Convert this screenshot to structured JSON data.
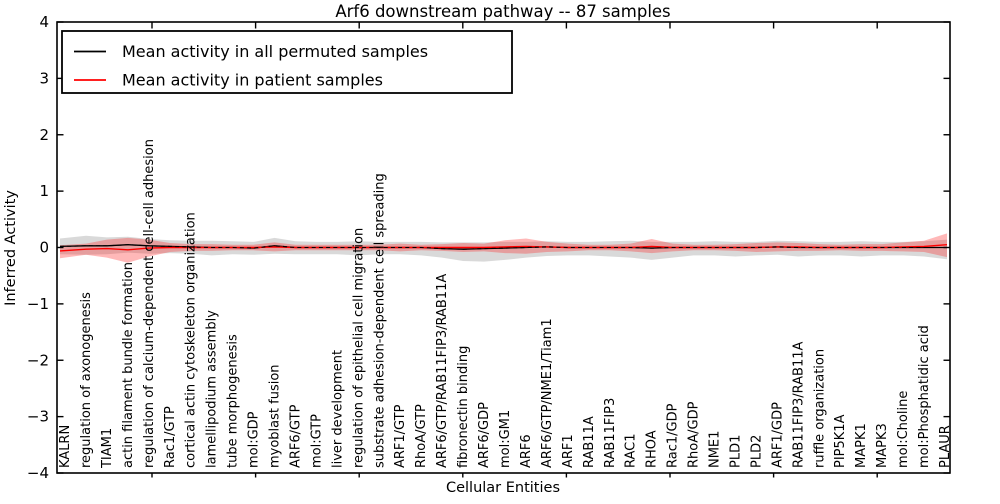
{
  "figure": {
    "title": "Arf6 downstream pathway -- 87 samples",
    "xlabel": "Cellular Entities",
    "ylabel": "Inferred Activity"
  },
  "chart_data": {
    "type": "line",
    "title": "Arf6 downstream pathway -- 87 samples",
    "xlabel": "Cellular Entities",
    "ylabel": "Inferred Activity",
    "ylim": [
      -4,
      4
    ],
    "yticks": [
      -4,
      -3,
      -2,
      -1,
      0,
      1,
      2,
      3,
      4
    ],
    "ytick_labels": [
      "−4",
      "−3",
      "−2",
      "−1",
      "0",
      "1",
      "2",
      "3",
      "4"
    ],
    "grid": false,
    "legend_position": "upper left",
    "categories": [
      "KALRN",
      "regulation of axonogenesis",
      "TIAM1",
      "actin filament bundle formation",
      "regulation of calcium-dependent cell-cell adhesion",
      "Rac1/GTP",
      "cortical actin cytoskeleton organization",
      "lamellipodium assembly",
      "tube morphogenesis",
      "mol:GDP",
      "myoblast fusion",
      "ARF6/GTP",
      "mol:GTP",
      "liver development",
      "regulation of epithelial cell migration",
      "substrate adhesion-dependent cell spreading",
      "ARF1/GTP",
      "RhoA/GTP",
      "ARF6/GTP/RAB11FIP3/RAB11A",
      "fibronectin binding",
      "ARF6/GDP",
      "mol:GM1",
      "ARF6",
      "ARF6/GTP/NME1/Tiam1",
      "ARF1",
      "RAB11A",
      "RAB11FIP3",
      "RAC1",
      "RHOA",
      "Rac1/GDP",
      "RhoA/GDP",
      "NME1",
      "PLD1",
      "PLD2",
      "ARF1/GDP",
      "RAB11FIP3/RAB11A",
      "ruffle organization",
      "PIP5K1A",
      "MAPK1",
      "MAPK3",
      "mol:Choline",
      "mol:Phosphatidic acid",
      "PLAUR"
    ],
    "series": [
      {
        "name": "Mean activity in all permuted samples",
        "color": "#000000",
        "band_color": "rgba(128,128,128,0.30)",
        "values": [
          0.02,
          0.03,
          0.03,
          0.05,
          0.03,
          0.02,
          0.01,
          0,
          0,
          -0.01,
          0.03,
          0,
          0,
          0,
          0,
          0,
          0,
          0,
          -0.02,
          -0.03,
          -0.02,
          -0.01,
          0,
          0.01,
          0,
          0,
          0,
          0,
          -0.01,
          0,
          0,
          0,
          0,
          0,
          0.01,
          0,
          0,
          0,
          0,
          0,
          0,
          0,
          0
        ],
        "band_above": [
          0.14,
          0.18,
          0.15,
          0.14,
          0.12,
          0.11,
          0.11,
          0.12,
          0.11,
          0.11,
          0.14,
          0.11,
          0.1,
          0.1,
          0.11,
          0.1,
          0.1,
          0.1,
          0.11,
          0.12,
          0.11,
          0.11,
          0.1,
          0.1,
          0.1,
          0.1,
          0.11,
          0.12,
          0.11,
          0.1,
          0.1,
          0.11,
          0.1,
          0.1,
          0.11,
          0.11,
          0.1,
          0.1,
          0.11,
          0.1,
          0.1,
          0.11,
          0.14
        ],
        "band_below": [
          0.14,
          0.16,
          0.15,
          0.14,
          0.14,
          0.12,
          0.12,
          0.14,
          0.12,
          0.12,
          0.14,
          0.12,
          0.12,
          0.12,
          0.14,
          0.12,
          0.12,
          0.14,
          0.16,
          0.21,
          0.23,
          0.21,
          0.18,
          0.16,
          0.14,
          0.14,
          0.16,
          0.18,
          0.21,
          0.18,
          0.14,
          0.14,
          0.16,
          0.14,
          0.14,
          0.16,
          0.14,
          0.14,
          0.16,
          0.14,
          0.14,
          0.16,
          0.21
        ]
      },
      {
        "name": "Mean activity in patient samples",
        "color": "#ff0000",
        "band_color": "rgba(255,38,38,0.33)",
        "values": [
          -0.06,
          -0.03,
          -0.02,
          -0.04,
          -0.01,
          0,
          0,
          0,
          0,
          0,
          0.01,
          0,
          0,
          0,
          0,
          0,
          0,
          0,
          0,
          0,
          0,
          0.01,
          0.02,
          0.01,
          0,
          0,
          0,
          0,
          0.02,
          0,
          0,
          0,
          0,
          0,
          0.01,
          0.01,
          0,
          0,
          0,
          0,
          0.01,
          0.02,
          0.05
        ],
        "band_above": [
          0.1,
          0.1,
          0.16,
          0.21,
          0.15,
          0.08,
          0.06,
          0.06,
          0.05,
          0.05,
          0.08,
          0.05,
          0.05,
          0.05,
          0.05,
          0.05,
          0.07,
          0.05,
          0.06,
          0.08,
          0.07,
          0.12,
          0.14,
          0.09,
          0.07,
          0.05,
          0.05,
          0.07,
          0.13,
          0.07,
          0.05,
          0.05,
          0.06,
          0.08,
          0.08,
          0.07,
          0.06,
          0.05,
          0.06,
          0.06,
          0.08,
          0.1,
          0.2
        ],
        "band_below": [
          0.13,
          0.1,
          0.16,
          0.23,
          0.15,
          0.08,
          0.06,
          0.06,
          0.05,
          0.05,
          0.08,
          0.05,
          0.05,
          0.05,
          0.05,
          0.05,
          0.07,
          0.05,
          0.06,
          0.08,
          0.07,
          0.11,
          0.13,
          0.09,
          0.07,
          0.05,
          0.05,
          0.07,
          0.12,
          0.07,
          0.05,
          0.05,
          0.06,
          0.08,
          0.08,
          0.07,
          0.06,
          0.05,
          0.06,
          0.06,
          0.08,
          0.1,
          0.22
        ]
      }
    ]
  }
}
